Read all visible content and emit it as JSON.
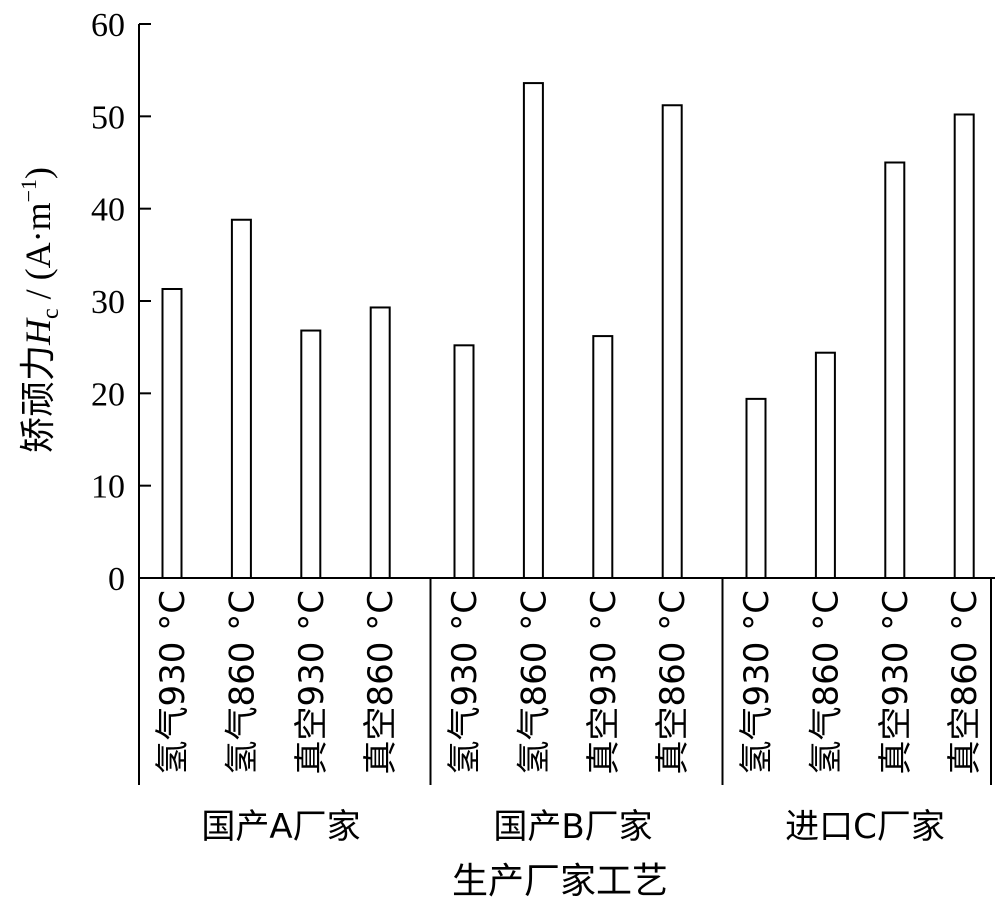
{
  "chart_data": {
    "type": "bar",
    "xlabel": "生产厂家工艺",
    "ylabel": {
      "prefix": "矫顽力",
      "symbol": "H",
      "subscript": "c",
      "unit_open": " / (A·m",
      "unit_exp": "−1",
      "unit_close": ")"
    },
    "ylim": [
      0,
      60
    ],
    "yticks": [
      "0",
      "10",
      "20",
      "30",
      "40",
      "50",
      "60"
    ],
    "grid": false,
    "legend": "none",
    "groups": [
      {
        "name": "国产A厂家",
        "categories": [
          "氢气930 °C",
          "氢气860 °C",
          "真空930 °C",
          "真空860 °C"
        ],
        "values": [
          31.3,
          38.8,
          26.8,
          29.3
        ]
      },
      {
        "name": "国产B厂家",
        "categories": [
          "氢气930 °C",
          "氢气860 °C",
          "真空930 °C",
          "真空860 °C"
        ],
        "values": [
          25.2,
          53.6,
          26.2,
          51.2
        ]
      },
      {
        "name": "进口C厂家",
        "categories": [
          "氢气930 °C",
          "氢气860 °C",
          "真空930 °C",
          "真空860 °C"
        ],
        "values": [
          19.4,
          24.4,
          45.0,
          50.2
        ]
      }
    ],
    "bar_color": "#ffffff",
    "bar_stroke": "#000000"
  }
}
